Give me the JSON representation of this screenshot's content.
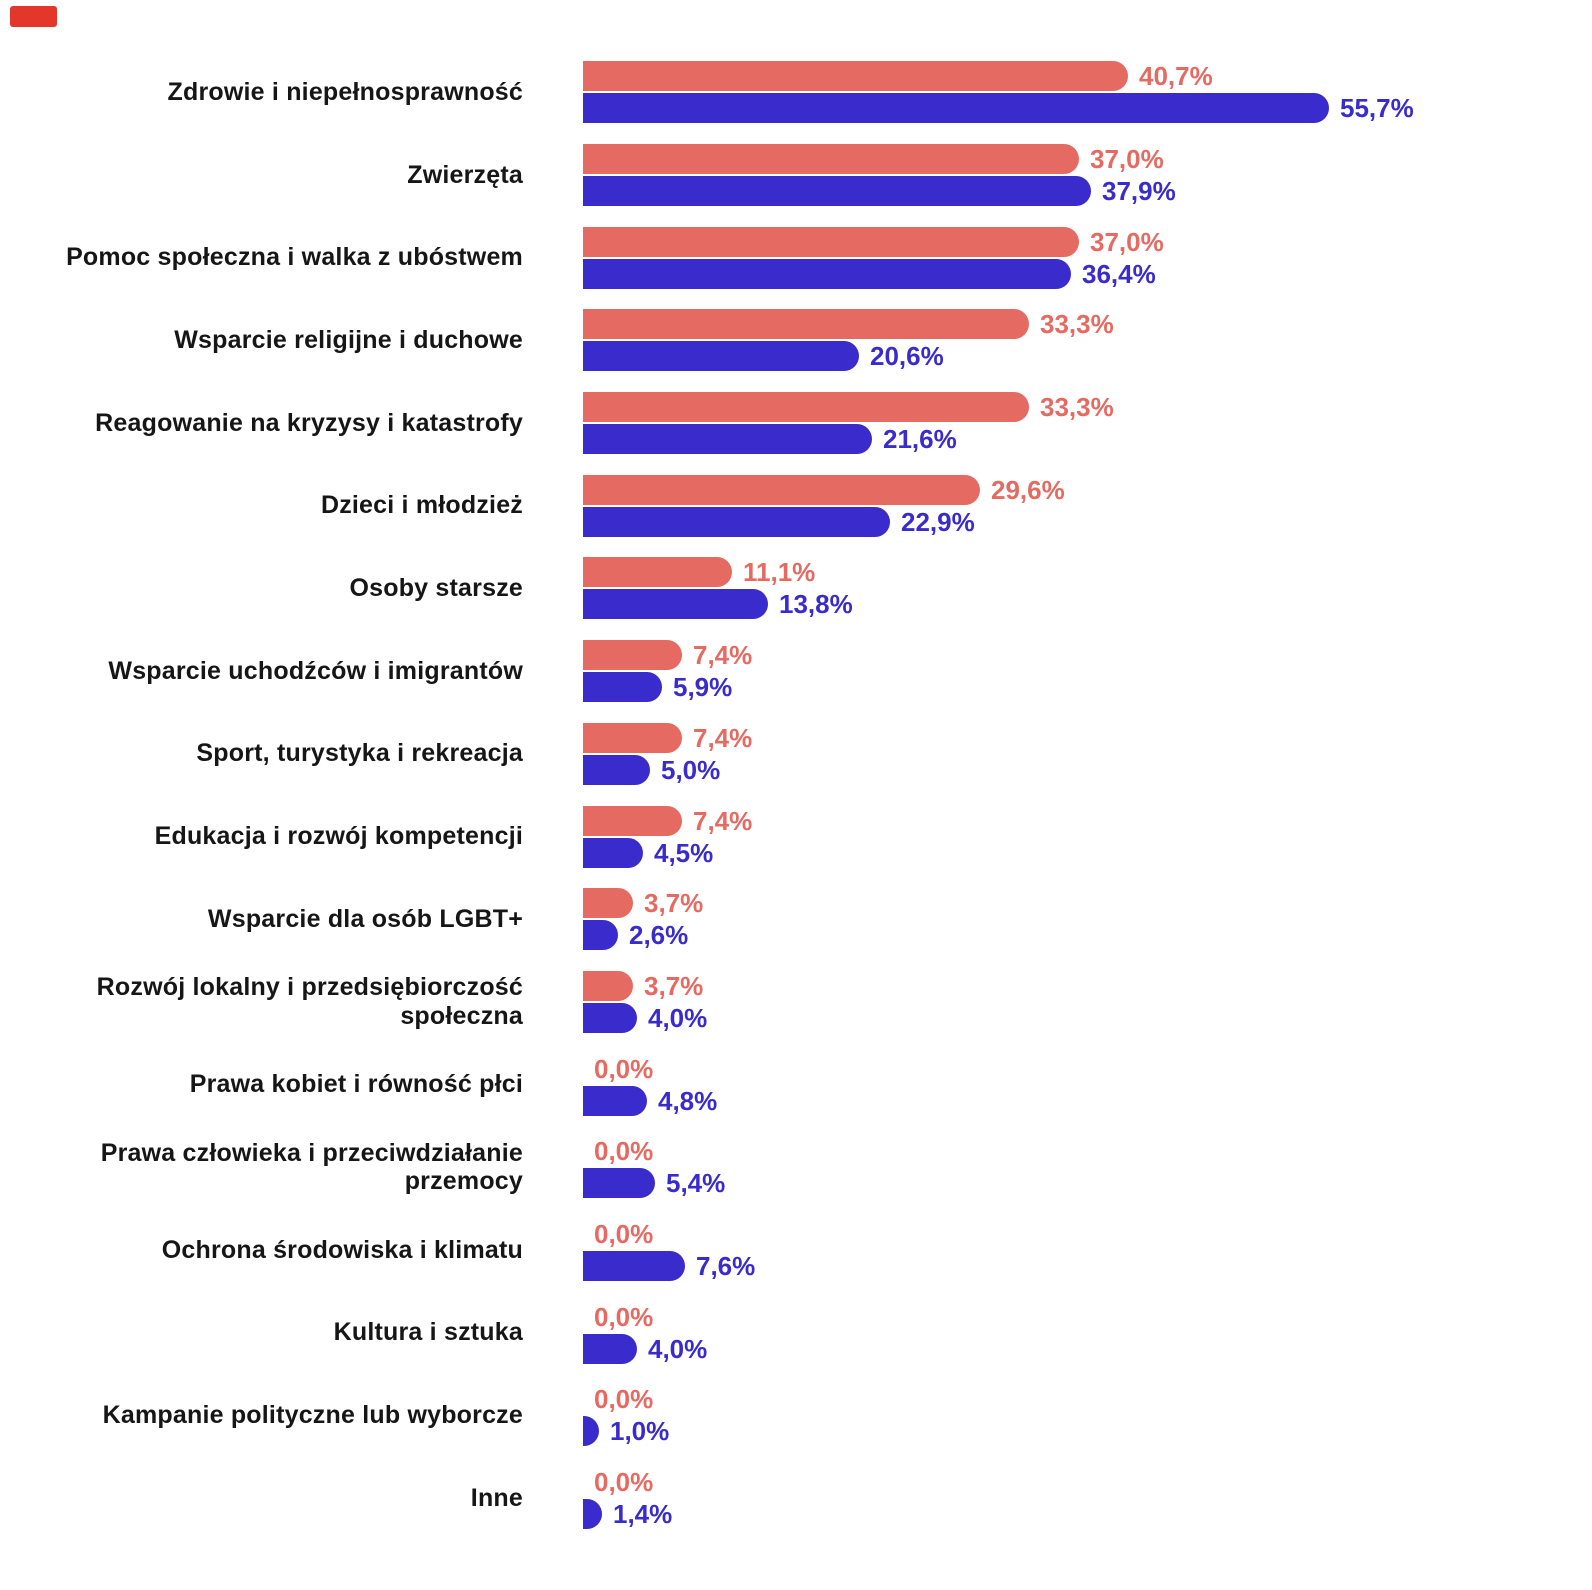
{
  "chart_data": {
    "type": "bar",
    "orientation": "horizontal",
    "grouped": true,
    "title": "",
    "xlabel": "",
    "ylabel": "",
    "legend": "none",
    "axes_hidden": true,
    "value_suffix": "%",
    "decimal_separator": ",",
    "xlim": [
      0,
      60
    ],
    "categories": [
      "Zdrowie i niepełnosprawność",
      "Zwierzęta",
      "Pomoc społeczna i walka z ubóstwem",
      "Wsparcie religijne i duchowe",
      "Reagowanie na kryzysy i katastrofy",
      "Dzieci i młodzież",
      "Osoby starsze",
      "Wsparcie uchodźców i imigrantów",
      "Sport, turystyka i rekreacja",
      "Edukacja i rozwój kompetencji",
      "Wsparcie dla osób LGBT+",
      "Rozwój lokalny i przedsiębiorczość społeczna",
      "Prawa kobiet i równość płci",
      "Prawa człowieka i przeciwdziałanie przemocy",
      "Ochrona środowiska i klimatu",
      "Kultura i sztuka",
      "Kampanie polityczne lub wyborcze",
      "Inne"
    ],
    "series": [
      {
        "key": "salmon",
        "color": "#e56b62",
        "values": [
          40.7,
          37.0,
          37.0,
          33.3,
          33.3,
          29.6,
          11.1,
          7.4,
          7.4,
          7.4,
          3.7,
          3.7,
          0.0,
          0.0,
          0.0,
          0.0,
          0.0,
          0.0
        ],
        "labels": [
          "40,7%",
          "37,0%",
          "37,0%",
          "33,3%",
          "33,3%",
          "29,6%",
          "11,1%",
          "7,4%",
          "7,4%",
          "7,4%",
          "3,7%",
          "3,7%",
          "0,0%",
          "0,0%",
          "0,0%",
          "0,0%",
          "0,0%",
          "0,0%"
        ]
      },
      {
        "key": "blue",
        "color": "#3a2ccc",
        "values": [
          55.7,
          37.9,
          36.4,
          20.6,
          21.6,
          22.9,
          13.8,
          5.9,
          5.0,
          4.5,
          2.6,
          4.0,
          4.8,
          5.4,
          7.6,
          4.0,
          1.0,
          1.4
        ],
        "labels": [
          "55,7%",
          "37,9%",
          "36,4%",
          "20,6%",
          "21,6%",
          "22,9%",
          "13,8%",
          "5,9%",
          "5,0%",
          "4,5%",
          "2,6%",
          "4,0%",
          "4,8%",
          "5,4%",
          "7,6%",
          "4,0%",
          "1,0%",
          "1,4%"
        ]
      }
    ]
  },
  "corner_mark": {
    "color": "#e2372a"
  }
}
